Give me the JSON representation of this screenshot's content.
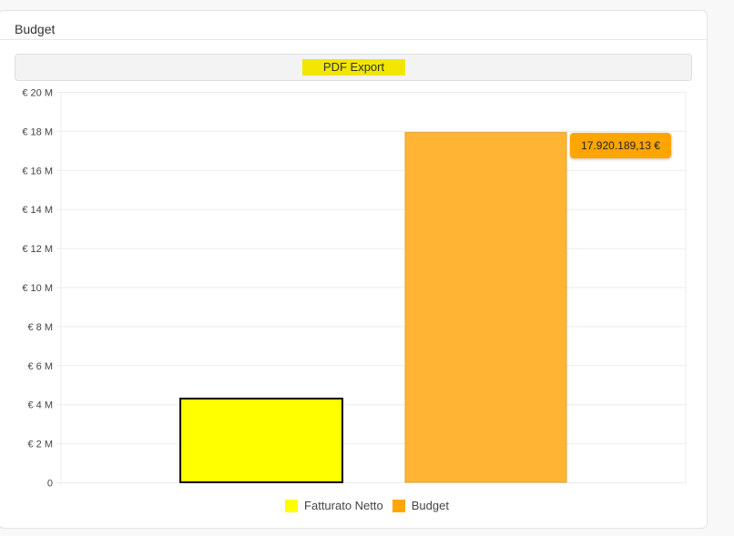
{
  "card": {
    "title": "Budget"
  },
  "toolbar": {
    "pdf_export_label": "PDF Export"
  },
  "tooltip": {
    "text": "17.920.189,13 €"
  },
  "chart_data": {
    "type": "bar",
    "categories": [
      "Fatturato Netto",
      "Budget"
    ],
    "values": [
      4290000,
      17920189.13
    ],
    "colors": [
      "#ffff00",
      "#ffb533"
    ],
    "legend_colors": [
      "#ffff00",
      "#ffa500"
    ],
    "ylim": [
      0,
      20000000
    ],
    "yticks": [
      0,
      2000000,
      4000000,
      6000000,
      8000000,
      10000000,
      12000000,
      14000000,
      16000000,
      18000000,
      20000000
    ],
    "ytick_labels": [
      "0",
      "€ 2 M",
      "€ 4 M",
      "€ 6 M",
      "€ 8 M",
      "€ 10 M",
      "€ 12 M",
      "€ 14 M",
      "€ 16 M",
      "€ 18 M",
      "€ 20 M"
    ],
    "grid": true,
    "legend": "bottom",
    "legend_entries": [
      "Fatturato Netto",
      "Budget"
    ]
  }
}
